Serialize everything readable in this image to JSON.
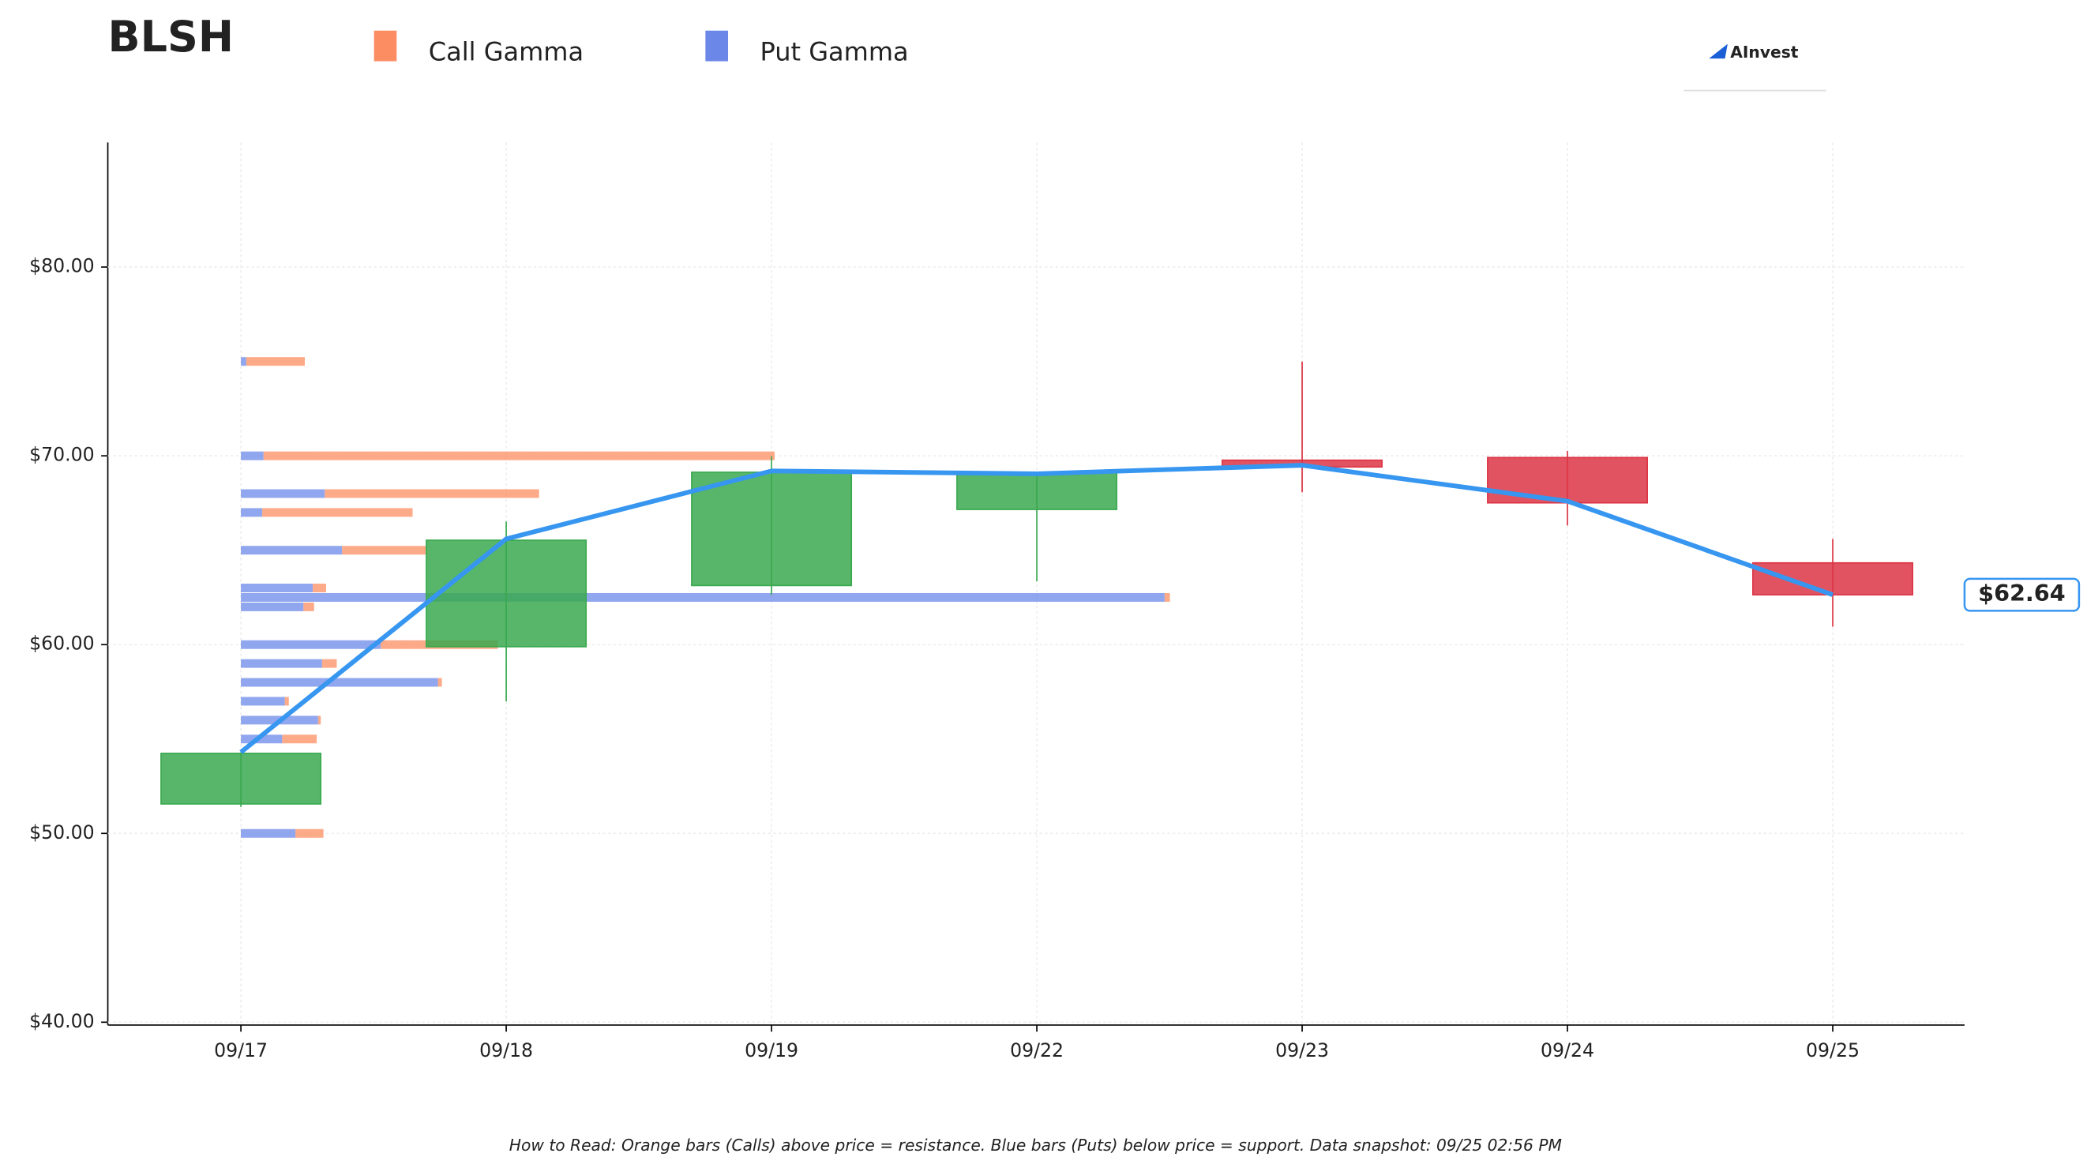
{
  "chart_data": {
    "type": "candlestick",
    "title": "BLSH",
    "brand": "AInvest",
    "footnote": "How to Read: Orange bars (Calls) above price = resistance. Blue bars (Puts) below price = support. Data snapshot: 09/25 02:56 PM",
    "categories": [
      "09/17",
      "09/18",
      "09/19",
      "09/22",
      "09/23",
      "09/24",
      "09/25"
    ],
    "open": [
      51.56,
      59.89,
      63.13,
      67.16,
      69.77,
      69.91,
      64.33
    ],
    "high": [
      54.3,
      66.52,
      69.98,
      69.13,
      74.99,
      70.26,
      65.6
    ],
    "low": [
      51.4,
      56.99,
      62.64,
      63.35,
      68.07,
      66.31,
      60.95
    ],
    "close": [
      54.24,
      65.53,
      69.13,
      69.13,
      69.41,
      67.51,
      62.64
    ],
    "up_color": "#3aa94f",
    "down_color": "#dc3545",
    "line": {
      "values": [
        54.3,
        65.6,
        69.2,
        69.05,
        69.5,
        67.6,
        62.64
      ],
      "color": "#3796f0"
    },
    "last_label": {
      "value": 62.64,
      "label": "$62.64"
    },
    "ylim": [
      39.85,
      86.6
    ],
    "yticks": [
      {
        "value": 40,
        "label": "$40.00"
      },
      {
        "value": 50,
        "label": "$50.00"
      },
      {
        "value": 60,
        "label": "$60.00"
      },
      {
        "value": 70,
        "label": "$70.00"
      },
      {
        "value": 80,
        "label": "$80.00"
      }
    ],
    "grid": true,
    "gamma": {
      "strikes": [
        75,
        70,
        68,
        67,
        65,
        63,
        62.5,
        62,
        60,
        59,
        58,
        57,
        56,
        55,
        50
      ],
      "series": [
        {
          "name": "Call Gamma",
          "color": "#fc8d62",
          "values": [
            44,
            384,
            161,
            113,
            63,
            10,
            4,
            8,
            88,
            11,
            3,
            3,
            2,
            26,
            21
          ]
        },
        {
          "name": "Put Gamma",
          "color": "#6b88e8",
          "values": [
            4,
            17,
            63,
            16,
            76,
            54,
            694,
            47,
            105,
            61,
            148,
            33,
            58,
            31,
            41
          ]
        }
      ]
    }
  }
}
